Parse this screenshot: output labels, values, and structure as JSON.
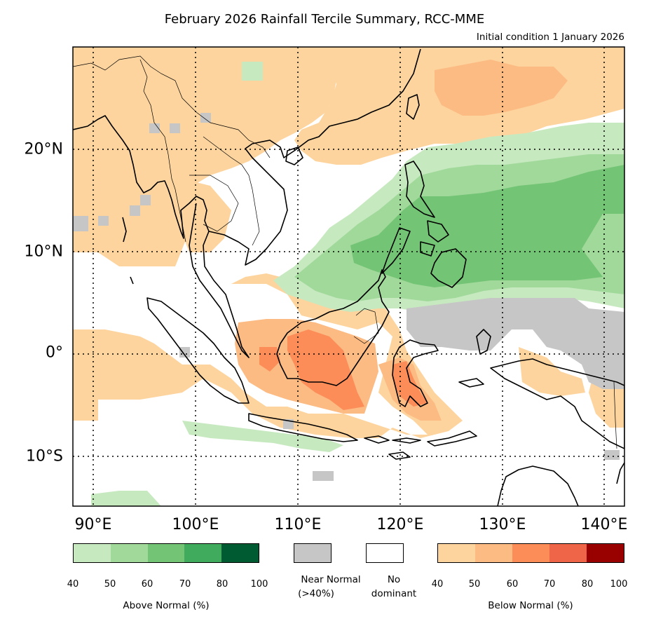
{
  "title": "February 2026 Rainfall Tercile Summary, RCC-MME",
  "subtitle": "Initial condition 1 January 2026",
  "map": {
    "lat_labels": [
      "20°N",
      "10°N",
      "0°",
      "10°S"
    ],
    "lon_labels": [
      "90°E",
      "100°E",
      "110°E",
      "120°E",
      "130°E",
      "140°E"
    ]
  },
  "legend": {
    "above": {
      "caption": "Above Normal (%)",
      "ticks": [
        "40",
        "50",
        "60",
        "70",
        "80",
        "100"
      ],
      "colors": [
        "#c7e9c0",
        "#a1d99b",
        "#74c476",
        "#41ab5d",
        "#005a32"
      ]
    },
    "near": {
      "caption_line1": "Near Normal",
      "caption_line2": "(>40%)",
      "color": "#c6c6c6"
    },
    "none": {
      "caption_line1": "No",
      "caption_line2": "dominant",
      "color": "#ffffff"
    },
    "below": {
      "caption": "Below Normal (%)",
      "ticks": [
        "40",
        "50",
        "60",
        "70",
        "80",
        "100"
      ],
      "colors": [
        "#fdd49e",
        "#fdbb84",
        "#fc8d59",
        "#ef6548",
        "#990000"
      ]
    }
  }
}
